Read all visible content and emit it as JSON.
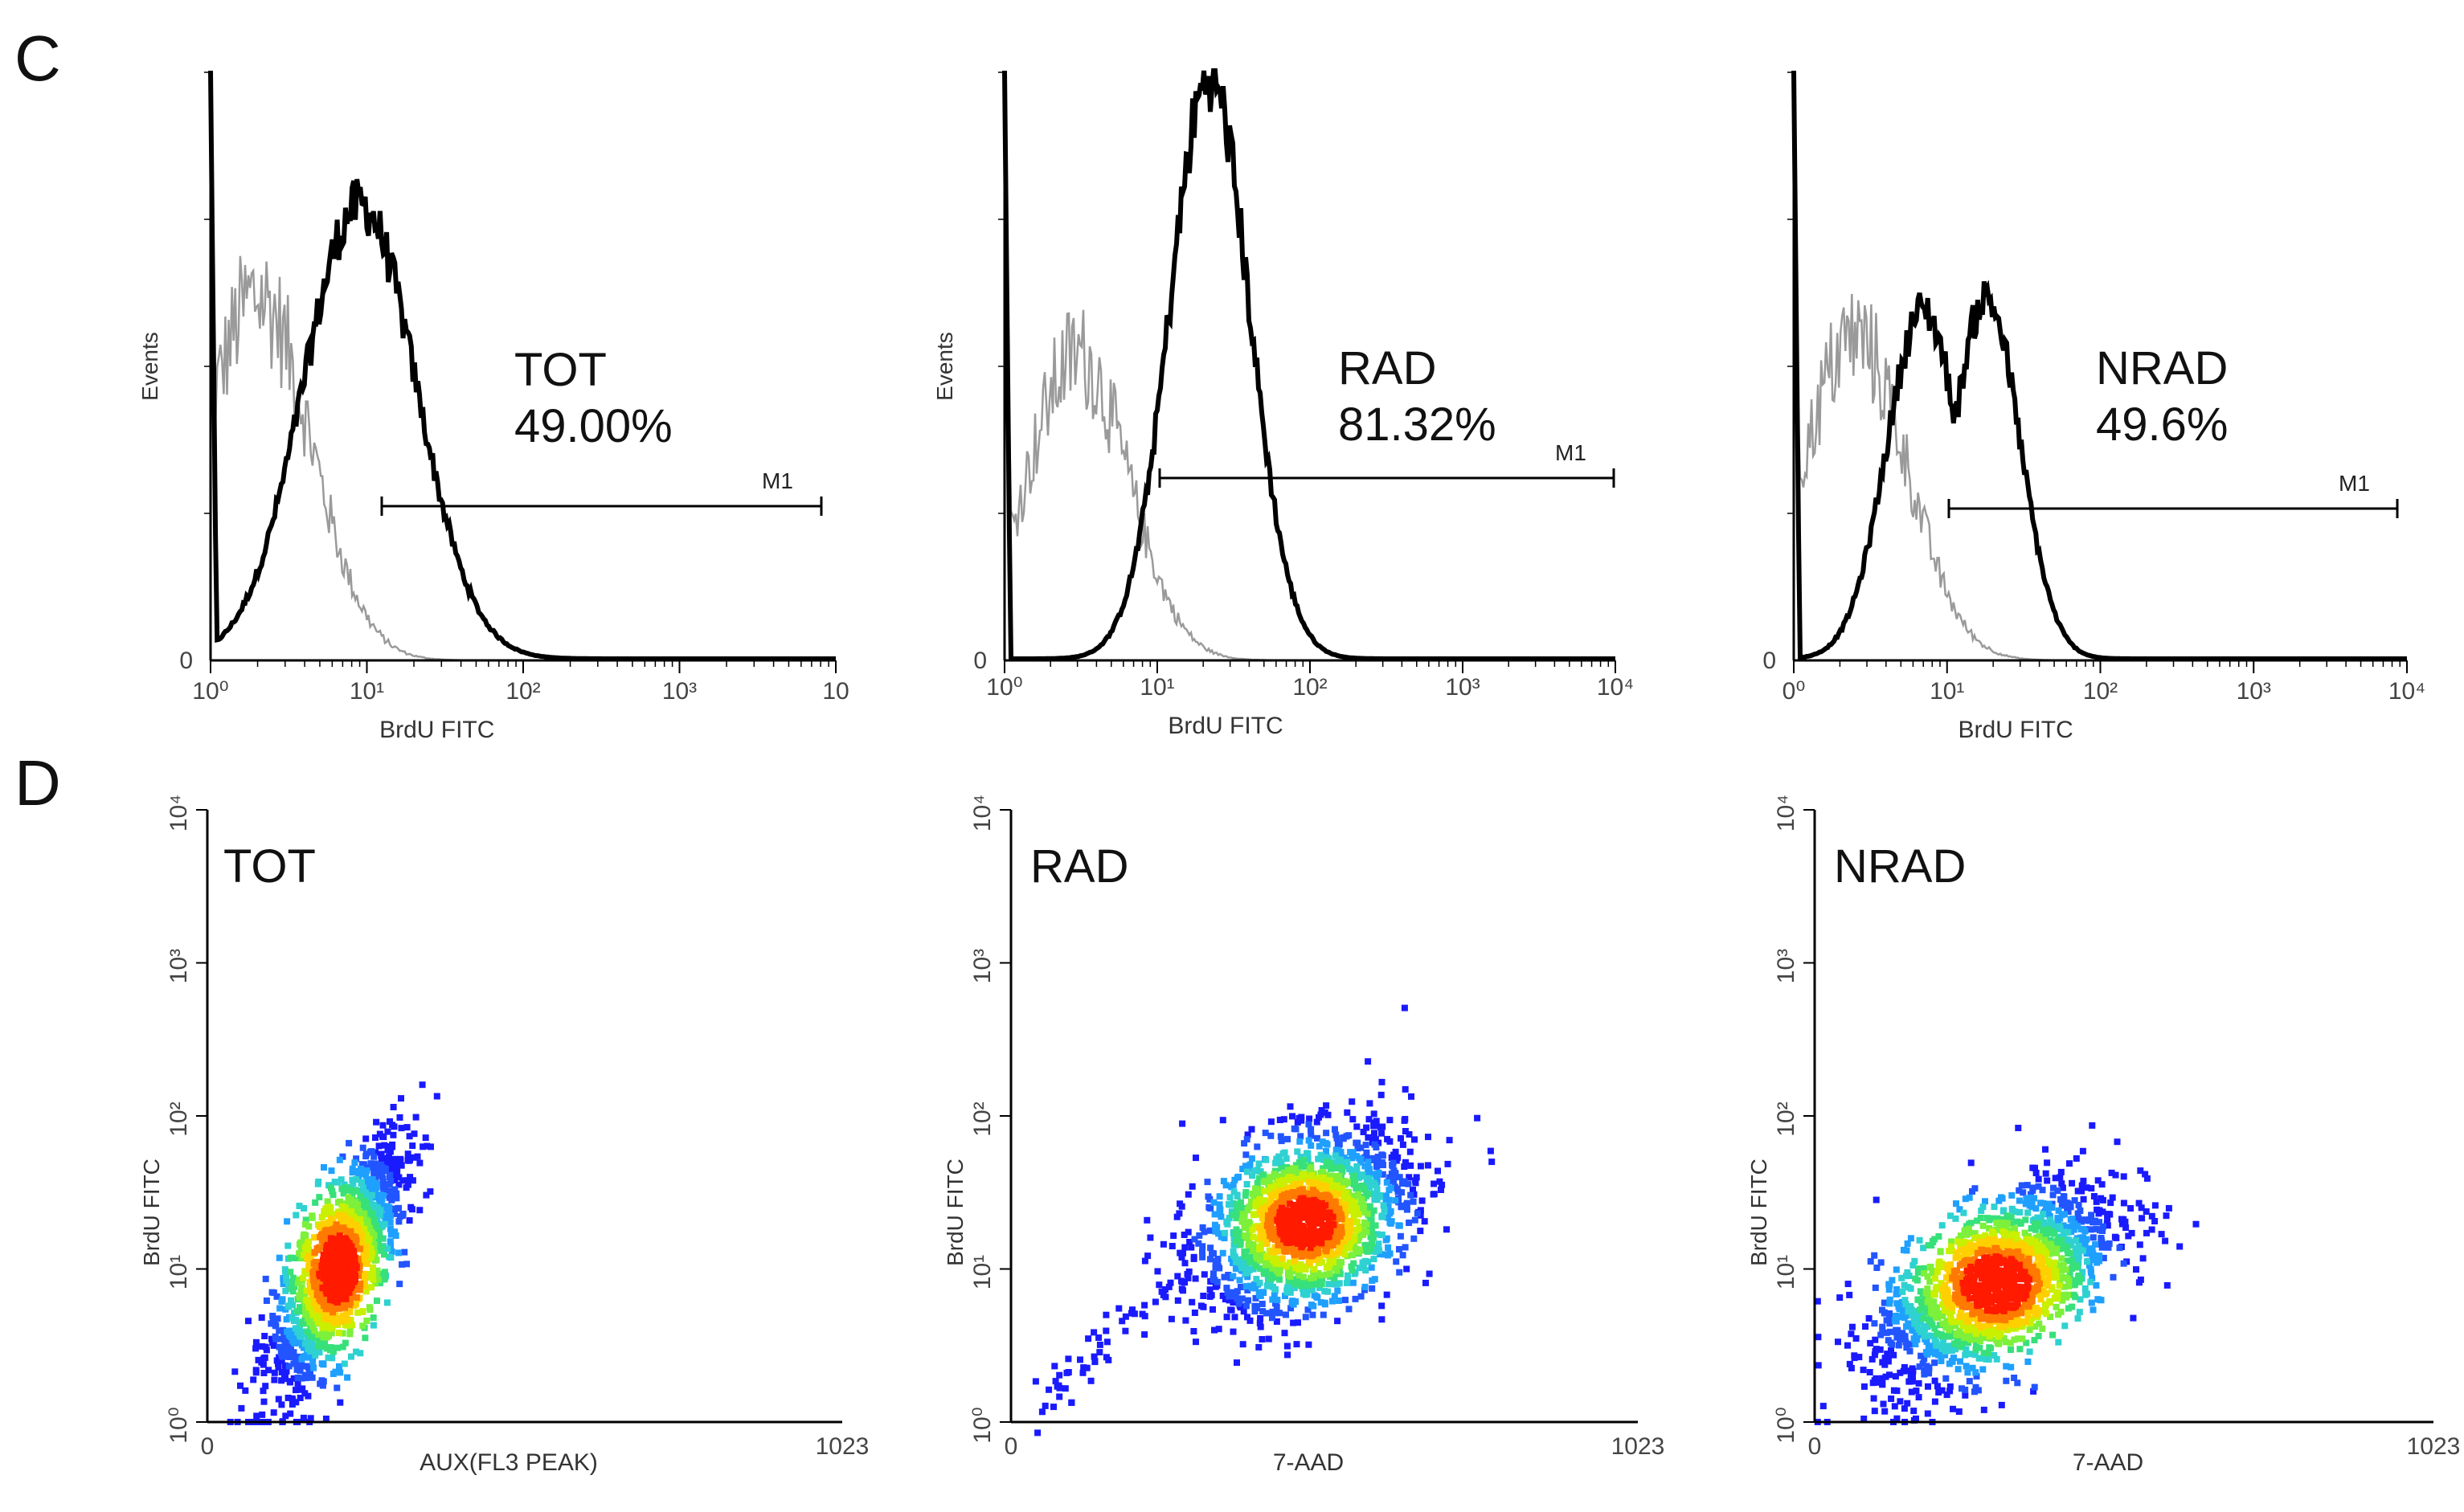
{
  "panels": {
    "C": "C",
    "D": "D"
  },
  "histograms": [
    {
      "label": "TOT",
      "percent": "49.00%",
      "ylabel": "Events",
      "xlabel": "BrdU FITC",
      "gate": "M1",
      "ticks": [
        "10⁰",
        "10¹",
        "10²",
        "10³",
        "10"
      ]
    },
    {
      "label": "RAD",
      "percent": "81.32%",
      "ylabel": "Events",
      "xlabel": "BrdU FITC",
      "gate": "M1",
      "ticks": [
        "10⁰",
        "10¹",
        "10²",
        "10³",
        "10⁴"
      ]
    },
    {
      "label": "NRAD",
      "percent": "49.6%",
      "ylabel": "",
      "xlabel": "BrdU FITC",
      "gate": "M1",
      "ticks": [
        "0⁰",
        "10¹",
        "10²",
        "10³",
        "10⁴"
      ]
    }
  ],
  "scatters": [
    {
      "label": "TOT",
      "xlabel": "AUX(FL3 PEAK)",
      "ylabel": "BrdU FITC"
    },
    {
      "label": "RAD",
      "xlabel": "7-AAD",
      "ylabel": "BrdU FITC"
    },
    {
      "label": "NRAD",
      "xlabel": "7-AAD",
      "ylabel": "BrdU FITC"
    }
  ],
  "chart_data": [
    {
      "type": "histogram",
      "title": "TOT",
      "xlabel": "BrdU FITC",
      "ylabel": "Events",
      "x_scale": "log",
      "xlim": [
        1,
        10000
      ],
      "gate": {
        "name": "M1",
        "range": [
          12,
          10000
        ],
        "percent": 49.0
      },
      "series": [
        {
          "name": "control (grey)",
          "peak_x": 2.0,
          "width_decades": 0.34,
          "height_fraction": 0.62
        },
        {
          "name": "BrdU (black)",
          "peak_x": 9.0,
          "width_decades": 0.36,
          "height_fraction": 0.78
        }
      ]
    },
    {
      "type": "histogram",
      "title": "RAD",
      "xlabel": "BrdU FITC",
      "ylabel": "Events",
      "x_scale": "log",
      "xlim": [
        1,
        10000
      ],
      "gate": {
        "name": "M1",
        "range": [
          11,
          10000
        ],
        "percent": 81.32
      },
      "series": [
        {
          "name": "control (grey)",
          "peak_x": 3.0,
          "width_decades": 0.33,
          "height_fraction": 0.52
        },
        {
          "name": "BrdU (black)",
          "peak_x": 22.0,
          "width_decades": 0.26,
          "height_fraction": 1.0
        }
      ]
    },
    {
      "type": "histogram",
      "title": "NRAD",
      "xlabel": "BrdU FITC",
      "ylabel": "Events",
      "x_scale": "log",
      "xlim": [
        1,
        10000
      ],
      "gate": {
        "name": "M1",
        "range": [
          11,
          10000
        ],
        "percent": 49.6
      },
      "series": [
        {
          "name": "control (grey)",
          "peak_x": 2.5,
          "width_decades": 0.34,
          "height_fraction": 0.55
        },
        {
          "name": "BrdU (black) peak A",
          "peak_x": 7.0,
          "width_decades": 0.24,
          "height_fraction": 0.6
        },
        {
          "name": "BrdU (black) peak B",
          "peak_x": 18.0,
          "width_decades": 0.22,
          "height_fraction": 0.62
        }
      ]
    },
    {
      "type": "scatter",
      "title": "TOT",
      "xlabel": "AUX(FL3 PEAK)",
      "ylabel": "BrdU FITC",
      "xlim": [
        0,
        1023
      ],
      "ylim": [
        1,
        10000
      ],
      "y_scale": "log",
      "density_center": {
        "x": 210,
        "y": 10
      },
      "spread": {
        "x": 55,
        "y_decades": 0.4
      },
      "correlation": 0.75,
      "points": 1500
    },
    {
      "type": "scatter",
      "title": "RAD",
      "xlabel": "7-AAD",
      "ylabel": "BrdU FITC",
      "xlim": [
        0,
        1023
      ],
      "ylim": [
        1,
        10000
      ],
      "y_scale": "log",
      "density_center": {
        "x": 480,
        "y": 20
      },
      "spread": {
        "x": 85,
        "y_decades": 0.3
      },
      "correlation": 0.35,
      "points": 1700
    },
    {
      "type": "scatter",
      "title": "NRAD",
      "xlabel": "7-AAD",
      "ylabel": "BrdU FITC",
      "xlim": [
        0,
        1023
      ],
      "ylim": [
        1,
        10000
      ],
      "y_scale": "log",
      "density_center": {
        "x": 300,
        "y": 8
      },
      "spread": {
        "x": 100,
        "y_decades": 0.33
      },
      "correlation": 0.6,
      "points": 1700
    }
  ]
}
